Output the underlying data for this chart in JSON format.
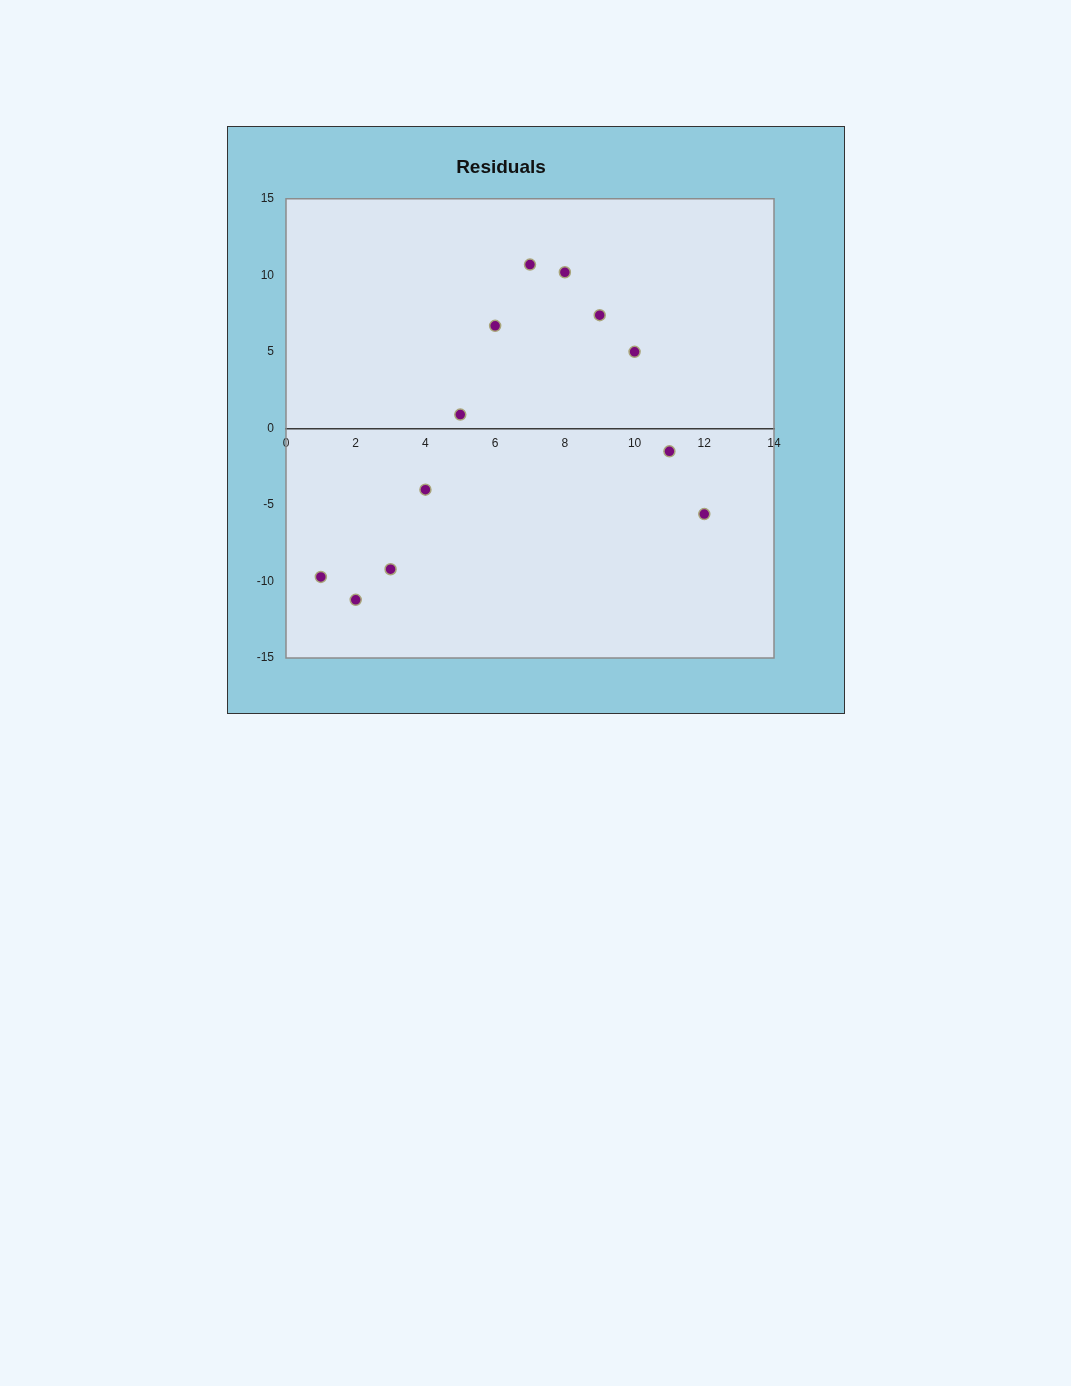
{
  "chart_data": {
    "type": "scatter",
    "title": "Residuals",
    "x": [
      1,
      2,
      3,
      4,
      5,
      6,
      7,
      8,
      9,
      10,
      11,
      12
    ],
    "values": [
      -9.7,
      -11.2,
      -9.2,
      -4.0,
      0.9,
      6.7,
      10.7,
      10.2,
      7.4,
      5.0,
      -1.5,
      -5.6
    ],
    "color": "#7a0a7a",
    "marker": "circle",
    "xlim": [
      0,
      14
    ],
    "xticks": [
      0,
      2,
      4,
      6,
      8,
      10,
      12,
      14
    ],
    "ylim": [
      -15,
      15
    ],
    "yticks": [
      -15,
      -10,
      -5,
      0,
      5,
      10,
      15
    ]
  }
}
